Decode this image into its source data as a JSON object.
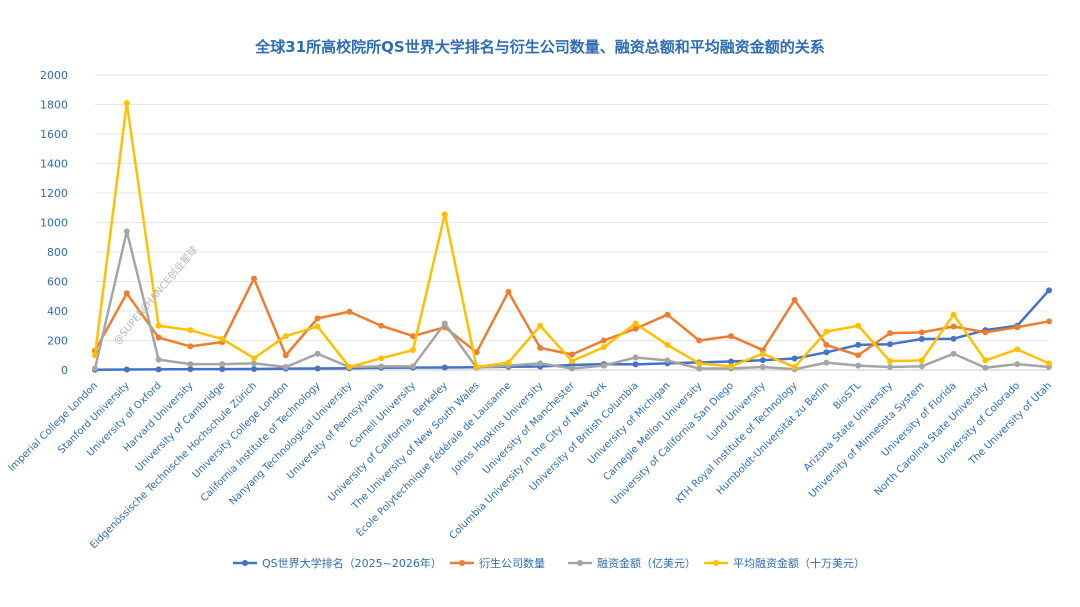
{
  "chart_data": {
    "type": "line",
    "title": "全球31所高校院所QS世界大学排名与衍生公司数量、融资总额和平均融资金额的关系",
    "xlabel": "",
    "ylabel": "",
    "ylim": [
      0,
      2000
    ],
    "yticks": [
      0,
      200,
      400,
      600,
      800,
      1000,
      1200,
      1400,
      1600,
      1800,
      2000
    ],
    "grid": true,
    "legend_position": "bottom",
    "categories": [
      "Imperial College London",
      "Stanford University",
      "University of Oxford",
      "Harvard University",
      "University of Cambridge",
      "Eidgenössische Technische Hochschule Zürich",
      "University College London",
      "California Institute of Technology",
      "Nanyang Technological University",
      "University of Pennsylvania",
      "Cornell University",
      "University of California, Berkeley",
      "The University of New South Wales",
      "École Polytechnique Fédérale de Lausanne",
      "Johns Hopkins University",
      "University of Manchester",
      "Columbia University in the City of New York",
      "University of British Columbia",
      "University of Michigan",
      "Carnegie Mellon University",
      "University of California San Diego",
      "Lund University",
      "KTH Royal Institute of Technology",
      "Humboldt-Universität zu Berlin",
      "BioSTL",
      "Arizona State University",
      "University of Minnesota System",
      "University of Florida",
      "North Carolina State University",
      "University of Colorado",
      "The University of Utah"
    ],
    "series": [
      {
        "name": "QS世界大学排名（2025~2026年）",
        "color": "#4472c4",
        "values": [
          2,
          3,
          4,
          6,
          6,
          7,
          9,
          10,
          12,
          15,
          16,
          17,
          19,
          22,
          24,
          34,
          40,
          38,
          45,
          52,
          58,
          66,
          78,
          120,
          170,
          175,
          210,
          212,
          270,
          300,
          540
        ]
      },
      {
        "name": "衍生公司数量",
        "color": "#ed7d31",
        "values": [
          130,
          520,
          220,
          160,
          190,
          620,
          100,
          350,
          395,
          300,
          230,
          290,
          120,
          530,
          150,
          105,
          200,
          280,
          375,
          200,
          230,
          135,
          475,
          170,
          100,
          250,
          255,
          295,
          255,
          290,
          330
        ]
      },
      {
        "name": "融资金额（亿美元）",
        "color": "#a5a5a5",
        "values": [
          10,
          940,
          70,
          40,
          40,
          45,
          20,
          110,
          20,
          25,
          25,
          315,
          15,
          30,
          45,
          10,
          30,
          85,
          65,
          10,
          10,
          20,
          5,
          50,
          30,
          20,
          25,
          110,
          15,
          40,
          20
        ]
      },
      {
        "name": "平均融资金额（十万美元）",
        "color": "#ffc000",
        "values": [
          100,
          1810,
          300,
          270,
          210,
          80,
          230,
          295,
          20,
          80,
          135,
          1055,
          20,
          50,
          300,
          60,
          155,
          315,
          170,
          45,
          25,
          110,
          20,
          260,
          300,
          60,
          65,
          375,
          65,
          140,
          45
        ]
      }
    ],
    "watermark": "@SUPERCHANCE创业星球"
  }
}
